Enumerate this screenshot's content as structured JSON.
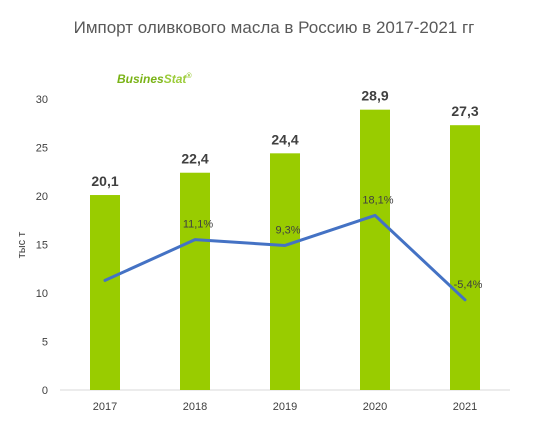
{
  "logo": {
    "text_a": "Busines",
    "text_b": "Stat",
    "mark": "®",
    "color_a": "#7ab317",
    "color_b": "#9ccc3a"
  },
  "colors": {
    "bar": "#99cc00",
    "line": "#4472c4",
    "axis": "#d9d9d9",
    "text": "#404040",
    "title": "#595959"
  },
  "chart_data": {
    "type": "bar",
    "title": "Импорт оливкового масла в Россию в 2017-2021 гг",
    "ylabel": "тыс т",
    "xlabel": "",
    "ylim": [
      0,
      30
    ],
    "yticks": [
      "0",
      "5",
      "10",
      "15",
      "20",
      "25",
      "30"
    ],
    "categories": [
      "2017",
      "2018",
      "2019",
      "2020",
      "2021"
    ],
    "series": [
      {
        "type": "bar",
        "values": [
          20.1,
          22.4,
          24.4,
          28.9,
          27.3
        ],
        "labels": [
          "20,1",
          "22,4",
          "24,4",
          "28,9",
          "27,3"
        ]
      },
      {
        "type": "line",
        "values": [
          null,
          11.1,
          9.3,
          18.1,
          -5.4
        ],
        "labels": [
          "",
          "11,1%",
          "9,3%",
          "18,1%",
          "-5,4%"
        ],
        "y_on_primary": [
          11.3,
          15.5,
          14.9,
          18.0,
          9.3
        ]
      }
    ],
    "grid": false,
    "legend": "none"
  }
}
